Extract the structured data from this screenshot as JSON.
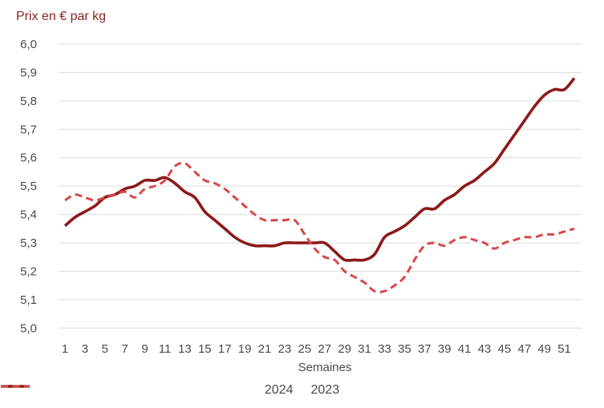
{
  "title": "Prix en € par kg",
  "chart_data": {
    "type": "line",
    "title": "Prix en € par kg",
    "xlabel": "Semaines",
    "ylabel": "Prix en € par kg",
    "x": [
      1,
      2,
      3,
      4,
      5,
      6,
      7,
      8,
      9,
      10,
      11,
      12,
      13,
      14,
      15,
      16,
      17,
      18,
      19,
      20,
      21,
      22,
      23,
      24,
      25,
      26,
      27,
      28,
      29,
      30,
      31,
      32,
      33,
      34,
      35,
      36,
      37,
      38,
      39,
      40,
      41,
      42,
      43,
      44,
      45,
      46,
      47,
      48,
      49,
      50,
      51,
      52
    ],
    "xtick_labels": [
      "1",
      "3",
      "5",
      "7",
      "9",
      "11",
      "13",
      "15",
      "17",
      "19",
      "21",
      "23",
      "25",
      "27",
      "29",
      "31",
      "33",
      "35",
      "37",
      "39",
      "41",
      "43",
      "45",
      "47",
      "49",
      "51"
    ],
    "xticks": [
      1,
      3,
      5,
      7,
      9,
      11,
      13,
      15,
      17,
      19,
      21,
      23,
      25,
      27,
      29,
      31,
      33,
      35,
      37,
      39,
      41,
      43,
      45,
      47,
      49,
      51
    ],
    "ylim": [
      5.0,
      6.0
    ],
    "ytick_step": 0.1,
    "ytick_labels": [
      "6,0",
      "5,9",
      "5,8",
      "5,7",
      "5,6",
      "5,5",
      "5,4",
      "5,3",
      "5,2",
      "5,1",
      "5,0"
    ],
    "ytick_values": [
      6.0,
      5.9,
      5.8,
      5.7,
      5.6,
      5.5,
      5.4,
      5.3,
      5.2,
      5.1,
      5.0
    ],
    "grid": "horizontal",
    "legend_position": "bottom",
    "series": [
      {
        "name": "2024",
        "style": "solid",
        "color": "#8b1a1a",
        "values": [
          5.36,
          5.39,
          5.41,
          5.43,
          5.46,
          5.47,
          5.49,
          5.5,
          5.52,
          5.52,
          5.53,
          5.51,
          5.48,
          5.46,
          5.41,
          5.38,
          5.35,
          5.32,
          5.3,
          5.29,
          5.29,
          5.29,
          5.3,
          5.3,
          5.3,
          5.3,
          5.3,
          5.27,
          5.24,
          5.24,
          5.24,
          5.26,
          5.32,
          5.34,
          5.36,
          5.39,
          5.42,
          5.42,
          5.45,
          5.47,
          5.5,
          5.52,
          5.55,
          5.58,
          5.63,
          5.68,
          5.73,
          5.78,
          5.82,
          5.84,
          5.84,
          5.88
        ]
      },
      {
        "name": "2023",
        "style": "dashed",
        "color": "#d94848",
        "values": [
          5.45,
          5.47,
          5.46,
          5.45,
          5.46,
          5.47,
          5.48,
          5.46,
          5.49,
          5.5,
          5.52,
          5.57,
          5.58,
          5.55,
          5.52,
          5.51,
          5.49,
          5.46,
          5.43,
          5.4,
          5.38,
          5.38,
          5.38,
          5.38,
          5.33,
          5.28,
          5.25,
          5.24,
          5.2,
          5.18,
          5.16,
          5.13,
          5.13,
          5.15,
          5.18,
          5.24,
          5.29,
          5.3,
          5.29,
          5.31,
          5.32,
          5.31,
          5.3,
          5.28,
          5.3,
          5.31,
          5.32,
          5.32,
          5.33,
          5.33,
          5.34,
          5.35
        ]
      }
    ]
  },
  "colors": {
    "grid": "#dcdcdc",
    "tick_text": "#4a4a4a",
    "title_text": "#8b2520"
  }
}
